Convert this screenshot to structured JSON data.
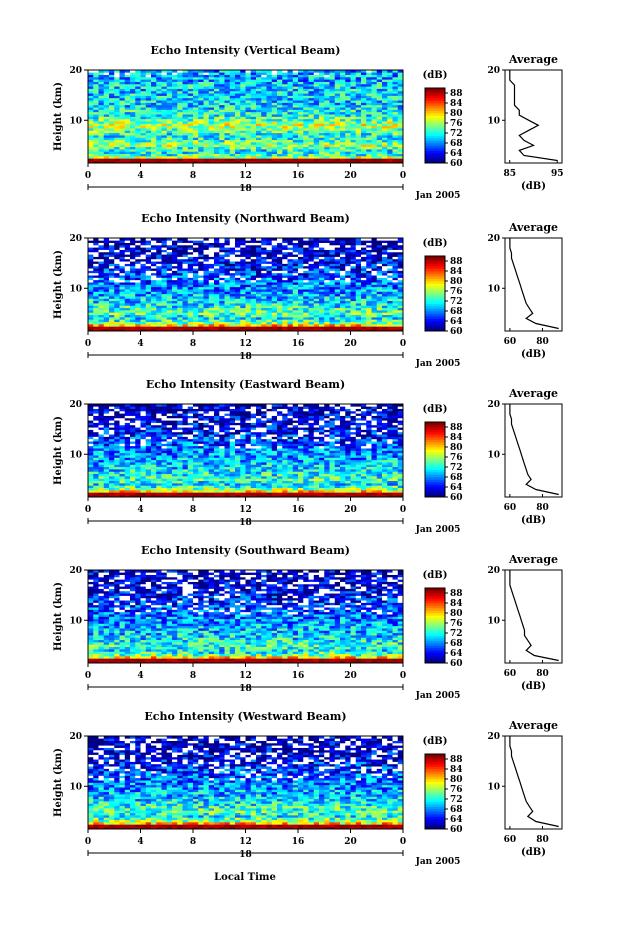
{
  "figure": {
    "xlabel_bottom": "Local Time",
    "date_label": "Jan 2005",
    "colorbar_unit": "(dB)",
    "colorbar_ticks": [
      "60",
      "64",
      "68",
      "72",
      "76",
      "80",
      "84",
      "88"
    ],
    "avg_title": "Average",
    "avg_xlabel": "(dB)",
    "panel_tops": [
      70,
      238,
      404,
      570,
      736
    ]
  },
  "chart_data": [
    {
      "type": "heatmap",
      "title": "Echo Intensity (Vertical Beam)",
      "ylabel": "Height (km)",
      "xlabel": "Local Time",
      "x_ticks": [
        "0",
        "4",
        "8",
        "12",
        "16",
        "20",
        "0"
      ],
      "day_label": "18",
      "y_ticks": [
        "20",
        "10"
      ],
      "xlim": [
        0,
        24
      ],
      "ylim": [
        1.5,
        20
      ],
      "colorbar": {
        "unit": "(dB)",
        "range": [
          60,
          90
        ],
        "ticks": [
          "60",
          "64",
          "68",
          "72",
          "76",
          "80",
          "84",
          "88"
        ]
      },
      "average_profile": {
        "title": "Average",
        "xlabel": "(dB)",
        "x_ticks": [
          "85",
          "95"
        ],
        "xlim": [
          84,
          96
        ],
        "y_ticks": [
          "20",
          "10"
        ],
        "heights_km": [
          2,
          3,
          4,
          5,
          6,
          7,
          8,
          9,
          10,
          11,
          12,
          13,
          14,
          15,
          16,
          17,
          18,
          19,
          20
        ],
        "values_db": [
          95,
          88,
          87,
          90,
          88,
          87,
          89,
          91,
          89,
          87,
          87,
          86,
          86,
          86,
          86,
          86,
          85,
          85,
          85
        ]
      }
    },
    {
      "type": "heatmap",
      "title": "Echo Intensity (Northward Beam)",
      "ylabel": "Height (km)",
      "xlabel": "Local Time",
      "x_ticks": [
        "0",
        "4",
        "8",
        "12",
        "16",
        "20",
        "0"
      ],
      "day_label": "18",
      "y_ticks": [
        "20",
        "10"
      ],
      "xlim": [
        0,
        24
      ],
      "ylim": [
        1.5,
        20
      ],
      "colorbar": {
        "unit": "(dB)",
        "range": [
          60,
          90
        ],
        "ticks": [
          "60",
          "64",
          "68",
          "72",
          "76",
          "80",
          "84",
          "88"
        ]
      },
      "average_profile": {
        "title": "Average",
        "xlabel": "(dB)",
        "x_ticks": [
          "60",
          "80"
        ],
        "xlim": [
          57,
          92
        ],
        "y_ticks": [
          "20",
          "10"
        ],
        "heights_km": [
          2,
          3,
          4,
          5,
          6,
          7,
          8,
          9,
          10,
          11,
          12,
          13,
          14,
          15,
          16,
          17,
          18,
          19,
          20
        ],
        "values_db": [
          90,
          76,
          70,
          74,
          72,
          70,
          69,
          68,
          67,
          66,
          65,
          64,
          63,
          62,
          61,
          61,
          60,
          60,
          60
        ]
      }
    },
    {
      "type": "heatmap",
      "title": "Echo Intensity (Eastward Beam)",
      "ylabel": "Height (km)",
      "xlabel": "Local Time",
      "x_ticks": [
        "0",
        "4",
        "8",
        "12",
        "16",
        "20",
        "0"
      ],
      "day_label": "18",
      "y_ticks": [
        "20",
        "10"
      ],
      "xlim": [
        0,
        24
      ],
      "ylim": [
        1.5,
        20
      ],
      "colorbar": {
        "unit": "(dB)",
        "range": [
          60,
          90
        ],
        "ticks": [
          "60",
          "64",
          "68",
          "72",
          "76",
          "80",
          "84",
          "88"
        ]
      },
      "average_profile": {
        "title": "Average",
        "xlabel": "(dB)",
        "x_ticks": [
          "60",
          "80"
        ],
        "xlim": [
          57,
          92
        ],
        "y_ticks": [
          "20",
          "10"
        ],
        "heights_km": [
          2,
          3,
          4,
          5,
          6,
          7,
          8,
          9,
          10,
          11,
          12,
          13,
          14,
          15,
          16,
          17,
          18,
          19,
          20
        ],
        "values_db": [
          90,
          76,
          70,
          73,
          71,
          70,
          69,
          68,
          67,
          66,
          65,
          64,
          63,
          62,
          61,
          61,
          60,
          60,
          60
        ]
      }
    },
    {
      "type": "heatmap",
      "title": "Echo Intensity (Southward Beam)",
      "ylabel": "Height (km)",
      "xlabel": "Local Time",
      "x_ticks": [
        "0",
        "4",
        "8",
        "12",
        "16",
        "20",
        "0"
      ],
      "day_label": "18",
      "y_ticks": [
        "20",
        "10"
      ],
      "xlim": [
        0,
        24
      ],
      "ylim": [
        1.5,
        20
      ],
      "colorbar": {
        "unit": "(dB)",
        "range": [
          60,
          90
        ],
        "ticks": [
          "60",
          "64",
          "68",
          "72",
          "76",
          "80",
          "84",
          "88"
        ]
      },
      "average_profile": {
        "title": "Average",
        "xlabel": "(dB)",
        "x_ticks": [
          "60",
          "80"
        ],
        "xlim": [
          57,
          92
        ],
        "y_ticks": [
          "20",
          "10"
        ],
        "heights_km": [
          2,
          3,
          4,
          5,
          6,
          7,
          8,
          9,
          10,
          11,
          12,
          13,
          14,
          15,
          16,
          17,
          18,
          19,
          20
        ],
        "values_db": [
          90,
          75,
          70,
          73,
          71,
          69,
          69,
          68,
          67,
          66,
          65,
          64,
          63,
          62,
          61,
          60,
          60,
          60,
          60
        ]
      }
    },
    {
      "type": "heatmap",
      "title": "Echo Intensity (Westward Beam)",
      "ylabel": "Height (km)",
      "xlabel": "Local Time",
      "x_ticks": [
        "0",
        "4",
        "8",
        "12",
        "16",
        "20",
        "0"
      ],
      "day_label": "18",
      "y_ticks": [
        "20",
        "10"
      ],
      "xlim": [
        0,
        24
      ],
      "ylim": [
        1.5,
        20
      ],
      "colorbar": {
        "unit": "(dB)",
        "range": [
          60,
          90
        ],
        "ticks": [
          "60",
          "64",
          "68",
          "72",
          "76",
          "80",
          "84",
          "88"
        ]
      },
      "average_profile": {
        "title": "Average",
        "xlabel": "(dB)",
        "x_ticks": [
          "60",
          "80"
        ],
        "xlim": [
          57,
          92
        ],
        "y_ticks": [
          "20",
          "10"
        ],
        "heights_km": [
          2,
          3,
          4,
          5,
          6,
          7,
          8,
          9,
          10,
          11,
          12,
          13,
          14,
          15,
          16,
          17,
          18,
          19,
          20
        ],
        "values_db": [
          90,
          76,
          71,
          74,
          72,
          70,
          69,
          68,
          67,
          66,
          65,
          64,
          63,
          62,
          61,
          61,
          60,
          60,
          60
        ]
      }
    }
  ]
}
